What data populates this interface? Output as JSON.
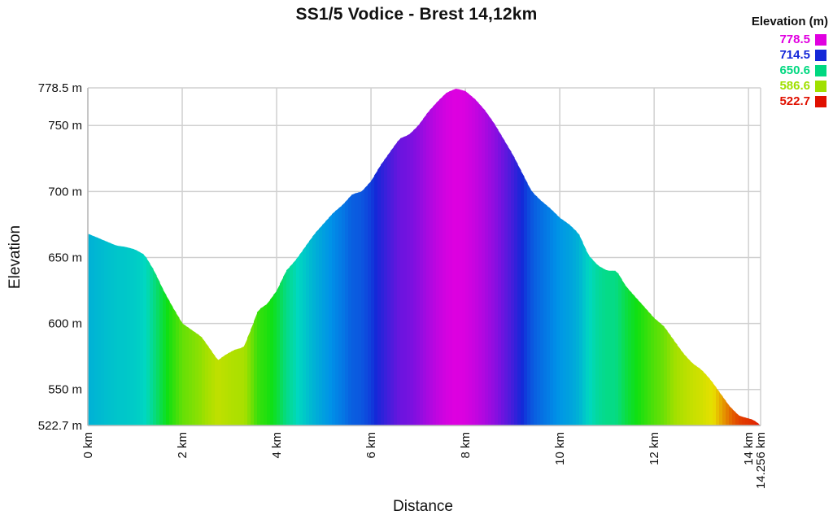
{
  "chart_data": {
    "type": "area",
    "title": "SS1/5 Vodice - Brest 14,12km",
    "xlabel": "Distance",
    "ylabel": "Elevation",
    "xlim": [
      0,
      14.256
    ],
    "ylim": [
      522.7,
      778.5
    ],
    "x_ticks": [
      {
        "value": 0,
        "label": "0 km"
      },
      {
        "value": 2,
        "label": "2 km"
      },
      {
        "value": 4,
        "label": "4 km"
      },
      {
        "value": 6,
        "label": "6 km"
      },
      {
        "value": 8,
        "label": "8 km"
      },
      {
        "value": 10,
        "label": "10 km"
      },
      {
        "value": 12,
        "label": "12 km"
      },
      {
        "value": 14,
        "label": "14 km"
      },
      {
        "value": 14.256,
        "label": "14.256 km"
      }
    ],
    "y_ticks": [
      {
        "value": 522.7,
        "label": "522.7 m"
      },
      {
        "value": 550,
        "label": "550 m"
      },
      {
        "value": 600,
        "label": "600 m"
      },
      {
        "value": 650,
        "label": "650 m"
      },
      {
        "value": 700,
        "label": "700 m"
      },
      {
        "value": 750,
        "label": "750 m"
      },
      {
        "value": 778.5,
        "label": "778.5 m"
      }
    ],
    "grid": true,
    "legend_position": "top-right",
    "legend": {
      "title": "Elevation (m)",
      "entries": [
        {
          "label": "778.5",
          "color": "#e000e0"
        },
        {
          "label": "714.5",
          "color": "#1428d8"
        },
        {
          "label": "650.6",
          "color": "#00d880"
        },
        {
          "label": "586.6",
          "color": "#a0e000"
        },
        {
          "label": "522.7",
          "color": "#e01000"
        }
      ]
    },
    "color_scale": [
      {
        "value": 522.7,
        "color": "#e01000"
      },
      {
        "value": 554.6,
        "color": "#e8e000"
      },
      {
        "value": 586.6,
        "color": "#a0e000"
      },
      {
        "value": 618.6,
        "color": "#10e010"
      },
      {
        "value": 650.6,
        "color": "#00d8c0"
      },
      {
        "value": 682.6,
        "color": "#0090e8"
      },
      {
        "value": 714.5,
        "color": "#1428d8"
      },
      {
        "value": 746.5,
        "color": "#8010e0"
      },
      {
        "value": 778.5,
        "color": "#e000e0"
      }
    ],
    "series": [
      {
        "x": [
          0,
          0.2,
          0.4,
          0.6,
          0.8,
          1.0,
          1.2,
          1.4,
          1.6,
          1.8,
          2.0,
          2.2,
          2.4,
          2.6,
          2.75,
          2.9,
          3.1,
          3.3,
          3.5,
          3.6,
          3.8,
          4.0,
          4.2,
          4.4,
          4.6,
          4.8,
          5.0,
          5.2,
          5.4,
          5.6,
          5.8,
          6.0,
          6.2,
          6.4,
          6.6,
          6.8,
          7.0,
          7.2,
          7.4,
          7.6,
          7.8,
          8.0,
          8.2,
          8.4,
          8.6,
          8.8,
          9.0,
          9.2,
          9.4,
          9.6,
          9.8,
          10.0,
          10.2,
          10.4,
          10.6,
          10.8,
          11.0,
          11.2,
          11.4,
          11.6,
          11.8,
          12.0,
          12.2,
          12.4,
          12.6,
          12.8,
          13.0,
          13.2,
          13.4,
          13.6,
          13.8,
          14.0,
          14.1,
          14.256
        ],
        "y": [
          668,
          665,
          662,
          659,
          658,
          656,
          652,
          640,
          625,
          612,
          600,
          595,
          590,
          580,
          572,
          576,
          580,
          582,
          600,
          610,
          615,
          625,
          640,
          648,
          658,
          668,
          676,
          684,
          690,
          698,
          700,
          708,
          720,
          730,
          740,
          743,
          750,
          760,
          768,
          775,
          778,
          776,
          770,
          762,
          752,
          740,
          728,
          714,
          700,
          693,
          687,
          680,
          675,
          668,
          652,
          644,
          640,
          640,
          628,
          620,
          612,
          604,
          598,
          588,
          578,
          570,
          565,
          557,
          547,
          537,
          530,
          528,
          527,
          522.7
        ]
      }
    ]
  }
}
